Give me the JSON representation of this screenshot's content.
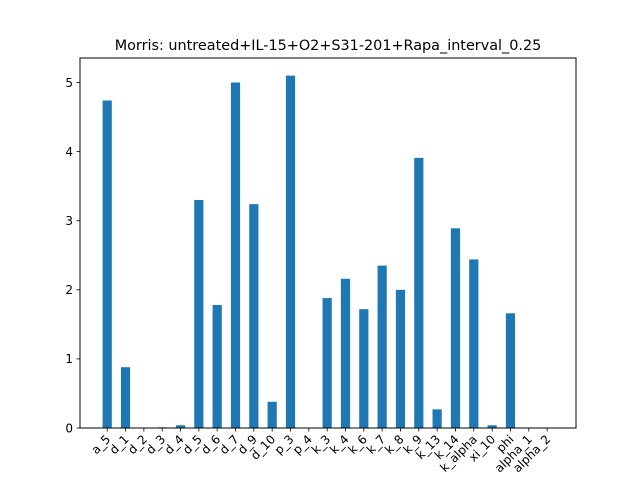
{
  "chart_data": {
    "type": "bar",
    "title": "Morris: untreated+IL-15+O2+S31-201+Rapa_interval_0.25",
    "xlabel": "",
    "ylabel": "",
    "categories": [
      "a_5",
      "d_1",
      "d_2",
      "d_3",
      "d_4",
      "d_5",
      "d_6",
      "d_7",
      "d_9",
      "d_10",
      "p_3",
      "p_4",
      "k_3",
      "k_4",
      "k_6",
      "k_7",
      "k_8",
      "k_9",
      "k_13",
      "k_14",
      "k_alpha",
      "xi_10",
      "phi",
      "alpha_1",
      "alpha_2"
    ],
    "values": [
      4.74,
      0.88,
      0.0,
      0.01,
      0.04,
      3.3,
      1.78,
      5.0,
      3.24,
      0.38,
      5.1,
      0.0,
      1.88,
      2.16,
      1.72,
      2.35,
      2.0,
      3.91,
      0.27,
      2.89,
      2.44,
      0.04,
      1.66,
      0.0,
      0.0
    ],
    "ylim": [
      0,
      5.355
    ],
    "yticks": [
      0,
      1,
      2,
      3,
      4,
      5
    ],
    "ytick_labels": [
      "0",
      "1",
      "2",
      "3",
      "4",
      "5"
    ],
    "bar_color": "#1f77b4",
    "grid": false,
    "legend": "none"
  }
}
